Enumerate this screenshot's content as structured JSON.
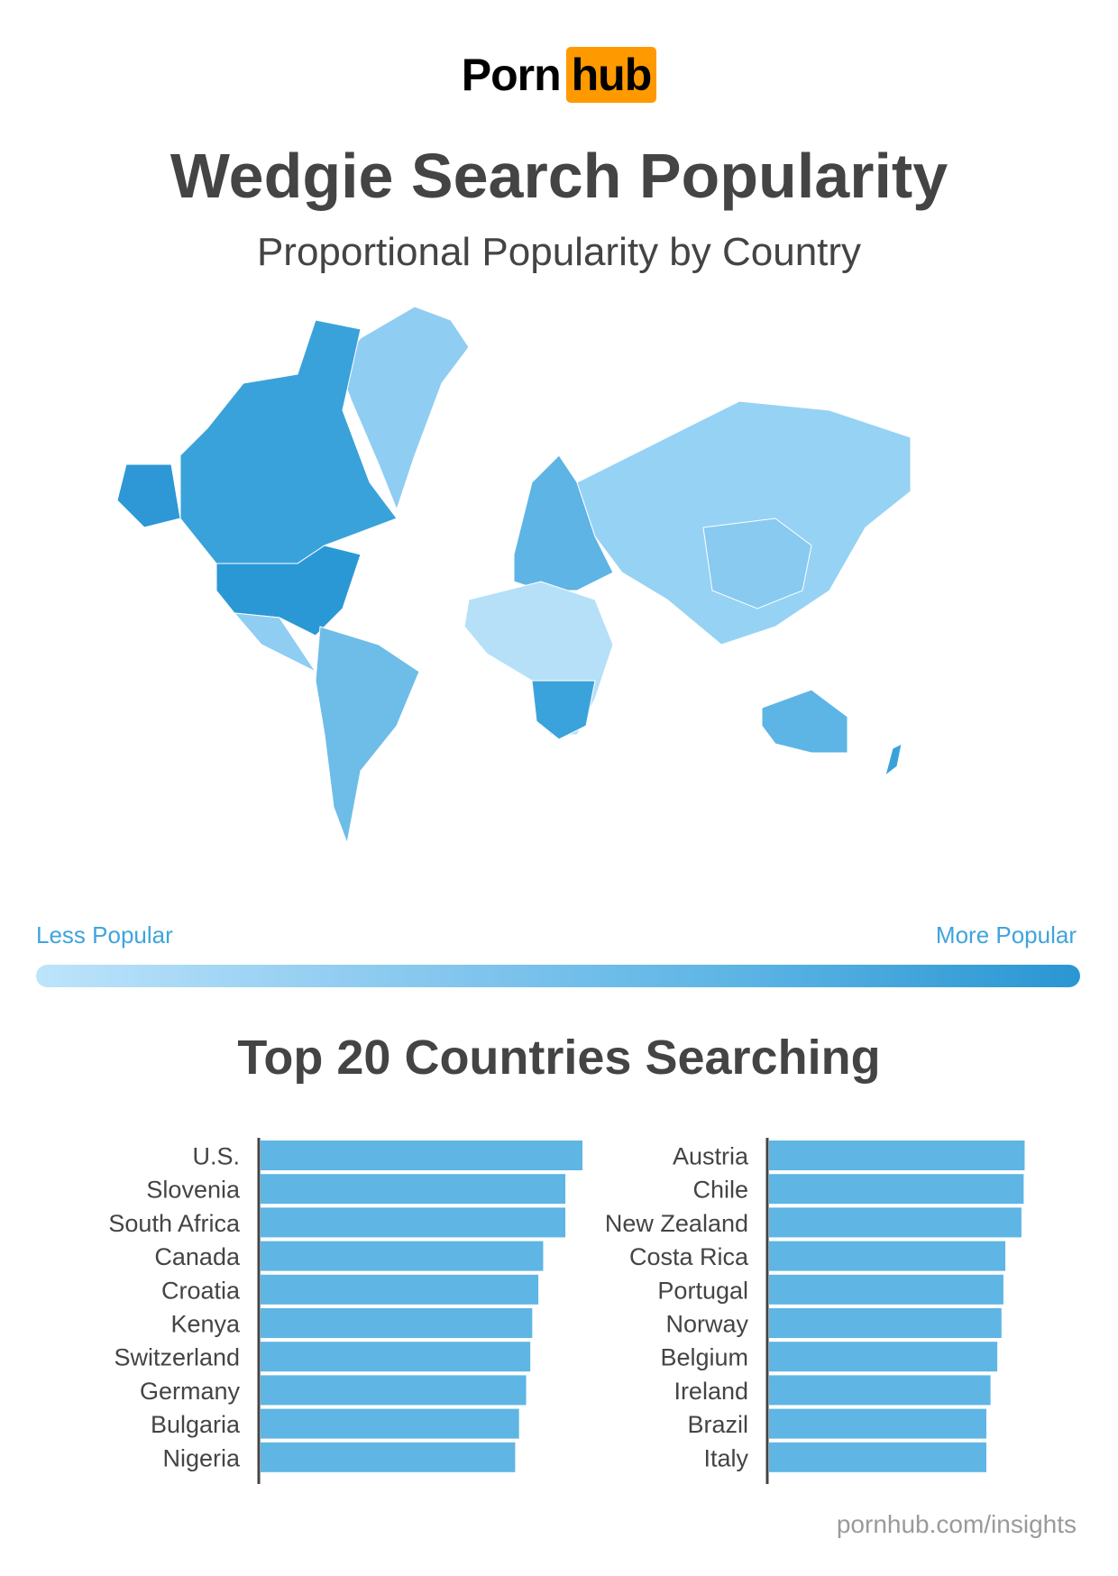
{
  "logo": {
    "part1": "Porn",
    "part2": "hub",
    "accent_color": "#ff9900"
  },
  "title": "Wedgie Search Popularity",
  "subtitle": "Proportional Popularity by Country",
  "legend": {
    "low_label": "Less Popular",
    "high_label": "More Popular",
    "low_color": "#bde4fa",
    "high_color": "#2a96d3"
  },
  "section_title": "Top 20 Countries Searching",
  "footer": "pornhub.com/insights",
  "chart_data": [
    {
      "type": "map",
      "title": "Proportional Popularity by Country",
      "note": "choropleth world map, darker blue = more popular"
    },
    {
      "type": "bar",
      "orientation": "horizontal",
      "bar_color": "#5fb5e4",
      "categories": [
        "U.S.",
        "Slovenia",
        "South Africa",
        "Canada",
        "Croatia",
        "Kenya",
        "Switzerland",
        "Germany",
        "Bulgaria",
        "Nigeria"
      ],
      "values": [
        100,
        94.7,
        94.7,
        87.8,
        86.3,
        84.4,
        83.8,
        82.5,
        80.3,
        79.1
      ]
    },
    {
      "type": "bar",
      "orientation": "horizontal",
      "bar_color": "#5fb5e4",
      "categories": [
        "Austria",
        "Chile",
        "New Zealand",
        "Costa Rica",
        "Portugal",
        "Norway",
        "Belgium",
        "Ireland",
        "Brazil",
        "Italy"
      ],
      "values": [
        79.4,
        79.1,
        78.4,
        73.4,
        72.8,
        72.2,
        70.9,
        68.8,
        67.5,
        67.5
      ]
    }
  ]
}
